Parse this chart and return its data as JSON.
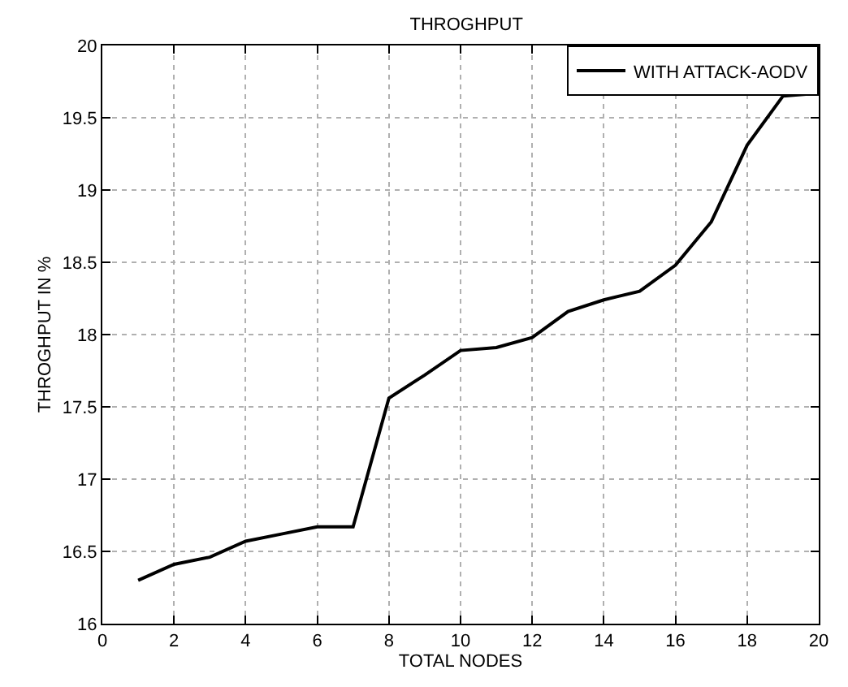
{
  "chart_data": {
    "type": "line",
    "title": "THROGHPUT",
    "xlabel": "TOTAL NODES",
    "ylabel": "THROGHPUT IN %",
    "x": [
      1,
      2,
      3,
      4,
      5,
      6,
      7,
      8,
      9,
      10,
      11,
      12,
      13,
      14,
      15,
      16,
      17,
      18,
      19,
      20
    ],
    "series": [
      {
        "name": "WITH ATTACK-AODV",
        "color": "#000000",
        "values": [
          16.3,
          16.41,
          16.46,
          16.57,
          16.62,
          16.67,
          16.67,
          17.56,
          17.72,
          17.89,
          17.91,
          17.98,
          18.16,
          18.24,
          18.3,
          18.48,
          18.78,
          19.31,
          19.65,
          19.67
        ]
      }
    ],
    "xlim": [
      0,
      20
    ],
    "xticks": [
      0,
      2,
      4,
      6,
      8,
      10,
      12,
      14,
      16,
      18,
      20
    ],
    "ylim": [
      16,
      20
    ],
    "yticks": [
      16,
      16.5,
      17,
      17.5,
      18,
      18.5,
      19,
      19.5,
      20
    ],
    "grid": true,
    "legend": "top right",
    "marker": "none",
    "line_style": "solid"
  }
}
